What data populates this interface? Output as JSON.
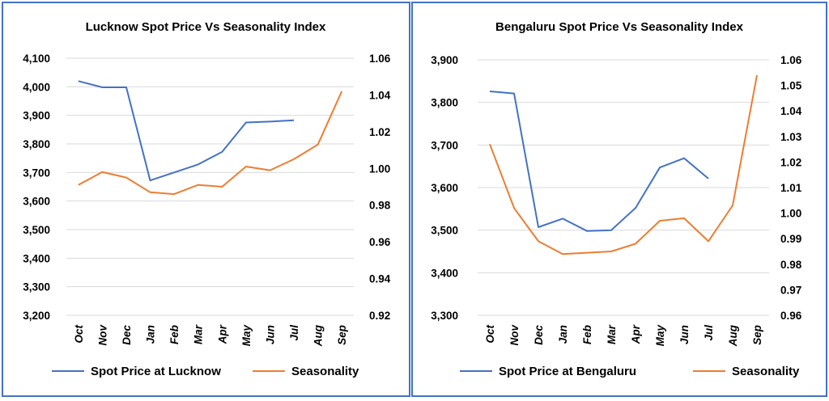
{
  "colors": {
    "spot": "#4472c4",
    "seasonality": "#ed7d31",
    "border": "#4472c4",
    "grid": "#d9d9d9"
  },
  "chart_data": [
    {
      "type": "line",
      "title": "Lucknow Spot Price Vs Seasonality Index",
      "categories": [
        "Oct",
        "Nov",
        "Dec",
        "Jan",
        "Feb",
        "Mar",
        "Apr",
        "May",
        "Jun",
        "Jul",
        "Aug",
        "Sep"
      ],
      "series": [
        {
          "name": "Spot Price at Lucknow",
          "axis": "left",
          "values": [
            4020,
            3998,
            3998,
            3672,
            3700,
            3728,
            3772,
            3875,
            3878,
            3883,
            null,
            null
          ]
        },
        {
          "name": "Seasonality",
          "axis": "right",
          "values": [
            0.991,
            0.998,
            0.995,
            0.987,
            0.986,
            0.991,
            0.99,
            1.001,
            0.999,
            1.005,
            1.013,
            1.042
          ]
        }
      ],
      "y_left": {
        "ticks": [
          "3,200",
          "3,300",
          "3,400",
          "3,500",
          "3,600",
          "3,700",
          "3,800",
          "3,900",
          "4,000",
          "4,100"
        ],
        "min": 3200,
        "max": 4100
      },
      "y_right": {
        "ticks": [
          "0.92",
          "0.94",
          "0.96",
          "0.98",
          "1.00",
          "1.02",
          "1.04",
          "1.06"
        ],
        "min": 0.92,
        "max": 1.06
      },
      "grid": true,
      "legend": "bottom"
    },
    {
      "type": "line",
      "title": "Bengaluru Spot Price Vs Seasonality Index",
      "categories": [
        "Oct",
        "Nov",
        "Dec",
        "Jan",
        "Feb",
        "Mar",
        "Apr",
        "May",
        "Jun",
        "Jul",
        "Aug",
        "Sep"
      ],
      "series": [
        {
          "name": "Spot Price at Bengaluru",
          "axis": "left",
          "values": [
            3826,
            3821,
            3507,
            3527,
            3498,
            3500,
            3552,
            3647,
            3669,
            3621,
            null,
            null
          ]
        },
        {
          "name": "Seasonality",
          "axis": "right",
          "values": [
            1.027,
            1.002,
            0.989,
            0.984,
            0.9845,
            0.985,
            0.988,
            0.997,
            0.998,
            0.989,
            1.003,
            1.054
          ]
        }
      ],
      "y_left": {
        "ticks": [
          "3,300",
          "3,400",
          "3,500",
          "3,600",
          "3,700",
          "3,800",
          "3,900"
        ],
        "min": 3300,
        "max": 3900
      },
      "y_right": {
        "ticks": [
          "0.96",
          "0.97",
          "0.98",
          "0.99",
          "1.00",
          "1.01",
          "1.02",
          "1.03",
          "1.04",
          "1.05",
          "1.06"
        ],
        "min": 0.96,
        "max": 1.06
      },
      "grid": true,
      "legend": "bottom"
    }
  ]
}
